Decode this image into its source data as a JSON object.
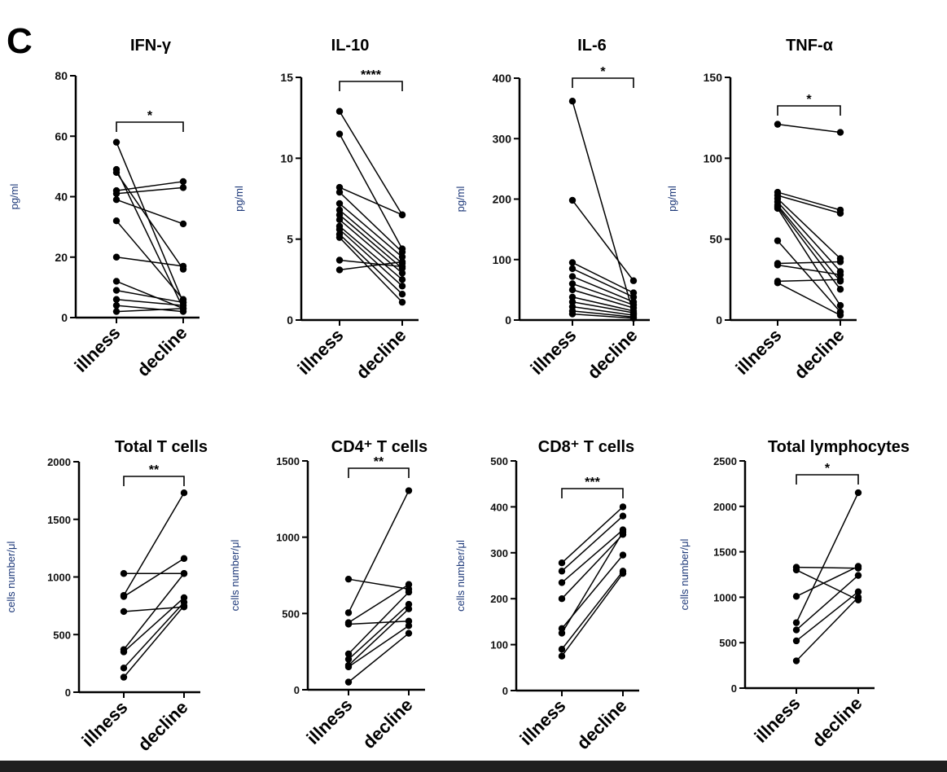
{
  "figure": {
    "panel_label": "C",
    "colors": {
      "axis": "#000000",
      "ylabel": "#1f3a7a",
      "points": "#000000"
    }
  },
  "chart_data": [
    {
      "type": "line",
      "title": "IFN-γ",
      "xlabel": "",
      "ylabel": "pg/ml",
      "categories": [
        "illness",
        "decline"
      ],
      "ylim": [
        0,
        80
      ],
      "yticks": [
        0,
        20,
        40,
        60,
        80
      ],
      "significance": "*",
      "series": [
        {
          "values": [
            58,
            5
          ]
        },
        {
          "values": [
            49,
            3
          ]
        },
        {
          "values": [
            48,
            16
          ]
        },
        {
          "values": [
            42,
            45
          ]
        },
        {
          "values": [
            41,
            43
          ]
        },
        {
          "values": [
            39,
            31
          ]
        },
        {
          "values": [
            32,
            6
          ]
        },
        {
          "values": [
            20,
            17
          ]
        },
        {
          "values": [
            12,
            3
          ]
        },
        {
          "values": [
            9,
            5
          ]
        },
        {
          "values": [
            6,
            4
          ]
        },
        {
          "values": [
            4,
            2
          ]
        },
        {
          "values": [
            2,
            3
          ]
        }
      ]
    },
    {
      "type": "line",
      "title": "IL-10",
      "xlabel": "",
      "ylabel": "pg/ml",
      "categories": [
        "illness",
        "decline"
      ],
      "ylim": [
        0,
        15
      ],
      "yticks": [
        0,
        5,
        10,
        15
      ],
      "significance": "****",
      "series": [
        {
          "values": [
            12.9,
            6.5
          ]
        },
        {
          "values": [
            11.5,
            4.4
          ]
        },
        {
          "values": [
            8.2,
            6.5
          ]
        },
        {
          "values": [
            7.9,
            4.2
          ]
        },
        {
          "values": [
            7.2,
            3.9
          ]
        },
        {
          "values": [
            6.8,
            3.5
          ]
        },
        {
          "values": [
            6.5,
            3.2
          ]
        },
        {
          "values": [
            6.2,
            2.9
          ]
        },
        {
          "values": [
            5.8,
            2.5
          ]
        },
        {
          "values": [
            5.6,
            2.1
          ]
        },
        {
          "values": [
            5.3,
            1.6
          ]
        },
        {
          "values": [
            5.1,
            1.1
          ]
        },
        {
          "values": [
            3.7,
            3.3
          ]
        },
        {
          "values": [
            3.1,
            3.6
          ]
        }
      ]
    },
    {
      "type": "line",
      "title": "IL-6",
      "xlabel": "",
      "ylabel": "pg/ml",
      "categories": [
        "illness",
        "decline"
      ],
      "ylim": [
        0,
        400
      ],
      "yticks": [
        0,
        100,
        200,
        300,
        400
      ],
      "significance": "*",
      "series": [
        {
          "values": [
            362,
            10
          ]
        },
        {
          "values": [
            198,
            65
          ]
        },
        {
          "values": [
            95,
            45
          ]
        },
        {
          "values": [
            85,
            38
          ]
        },
        {
          "values": [
            72,
            30
          ]
        },
        {
          "values": [
            60,
            25
          ]
        },
        {
          "values": [
            50,
            20
          ]
        },
        {
          "values": [
            38,
            15
          ]
        },
        {
          "values": [
            30,
            12
          ]
        },
        {
          "values": [
            22,
            8
          ]
        },
        {
          "values": [
            15,
            5
          ]
        },
        {
          "values": [
            10,
            3
          ]
        }
      ]
    },
    {
      "type": "line",
      "title": "TNF-α",
      "xlabel": "",
      "ylabel": "pg/ml",
      "categories": [
        "illness",
        "decline"
      ],
      "ylim": [
        0,
        150
      ],
      "yticks": [
        0,
        50,
        100,
        150
      ],
      "significance": "*",
      "series": [
        {
          "values": [
            121,
            116
          ]
        },
        {
          "values": [
            79,
            68
          ]
        },
        {
          "values": [
            77,
            66
          ]
        },
        {
          "values": [
            75,
            38
          ]
        },
        {
          "values": [
            73,
            30
          ]
        },
        {
          "values": [
            71,
            24
          ]
        },
        {
          "values": [
            70,
            19
          ]
        },
        {
          "values": [
            69,
            9
          ]
        },
        {
          "values": [
            49,
            5
          ]
        },
        {
          "values": [
            35,
            36
          ]
        },
        {
          "values": [
            34,
            28
          ]
        },
        {
          "values": [
            24,
            25
          ]
        },
        {
          "values": [
            23,
            3
          ]
        }
      ]
    },
    {
      "type": "line",
      "title": "Total T cells",
      "xlabel": "",
      "ylabel": "cells number/μl",
      "categories": [
        "illness",
        "decline"
      ],
      "ylim": [
        0,
        2000
      ],
      "yticks": [
        0,
        500,
        1000,
        1500,
        2000
      ],
      "significance": "**",
      "series": [
        {
          "values": [
            1030,
            1030
          ]
        },
        {
          "values": [
            840,
            1730
          ]
        },
        {
          "values": [
            830,
            1160
          ]
        },
        {
          "values": [
            700,
            740
          ]
        },
        {
          "values": [
            370,
            1030
          ]
        },
        {
          "values": [
            350,
            820
          ]
        },
        {
          "values": [
            210,
            780
          ]
        },
        {
          "values": [
            130,
            750
          ]
        }
      ]
    },
    {
      "type": "line",
      "title": "CD4⁺ T cells",
      "xlabel": "",
      "ylabel": "cells number/μl",
      "categories": [
        "illness",
        "decline"
      ],
      "ylim": [
        0,
        1500
      ],
      "yticks": [
        0,
        500,
        1000,
        1500
      ],
      "significance": "**",
      "series": [
        {
          "values": [
            725,
            660
          ]
        },
        {
          "values": [
            505,
            1305
          ]
        },
        {
          "values": [
            440,
            690
          ]
        },
        {
          "values": [
            430,
            450
          ]
        },
        {
          "values": [
            235,
            640
          ]
        },
        {
          "values": [
            200,
            560
          ]
        },
        {
          "values": [
            160,
            530
          ]
        },
        {
          "values": [
            150,
            420
          ]
        },
        {
          "values": [
            50,
            370
          ]
        }
      ]
    },
    {
      "type": "line",
      "title": "CD8⁺ T cells",
      "xlabel": "",
      "ylabel": "cells number/μl",
      "categories": [
        "illness",
        "decline"
      ],
      "ylim": [
        0,
        500
      ],
      "yticks": [
        0,
        100,
        200,
        300,
        400,
        500
      ],
      "significance": "***",
      "series": [
        {
          "values": [
            278,
            400
          ]
        },
        {
          "values": [
            260,
            380
          ]
        },
        {
          "values": [
            235,
            350
          ]
        },
        {
          "values": [
            200,
            340
          ]
        },
        {
          "values": [
            135,
            295
          ]
        },
        {
          "values": [
            125,
            345
          ]
        },
        {
          "values": [
            90,
            260
          ]
        },
        {
          "values": [
            75,
            255
          ]
        }
      ]
    },
    {
      "type": "line",
      "title": "Total lymphocytes",
      "xlabel": "",
      "ylabel": "cells number/μl",
      "categories": [
        "illness",
        "decline"
      ],
      "ylim": [
        0,
        2500
      ],
      "yticks": [
        0,
        500,
        1000,
        1500,
        2000,
        2500
      ],
      "significance": "*",
      "series": [
        {
          "values": [
            1330,
            1320
          ]
        },
        {
          "values": [
            1300,
            970
          ]
        },
        {
          "values": [
            1010,
            1340
          ]
        },
        {
          "values": [
            720,
            2150
          ]
        },
        {
          "values": [
            640,
            1240
          ]
        },
        {
          "values": [
            520,
            1060
          ]
        },
        {
          "values": [
            300,
            1000
          ]
        }
      ]
    }
  ]
}
